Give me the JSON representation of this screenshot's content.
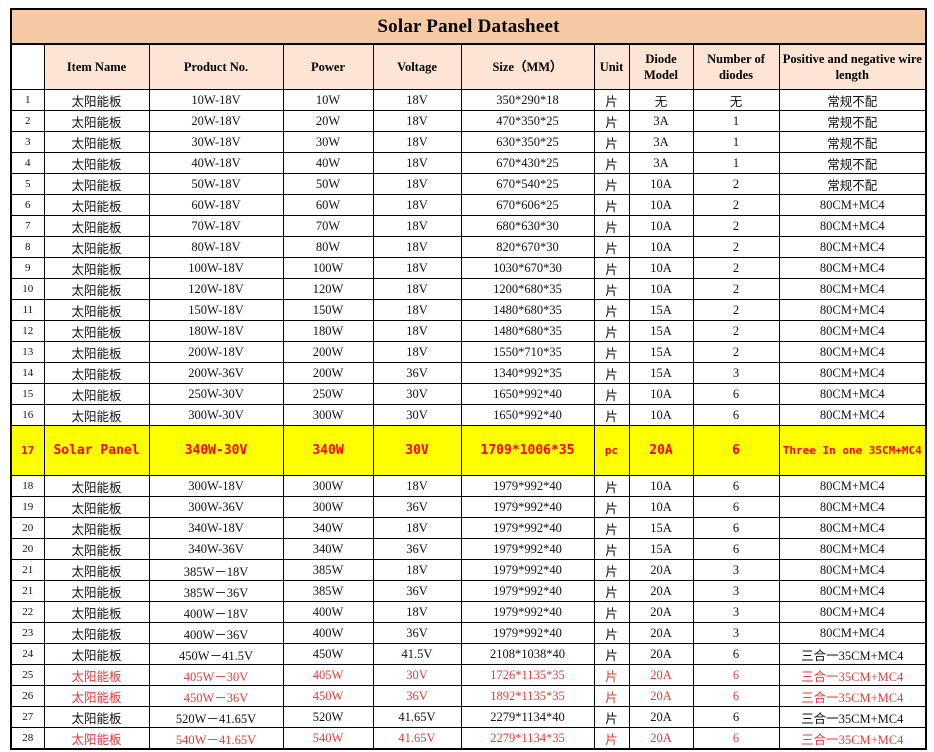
{
  "title": "Solar Panel Datasheet",
  "colors": {
    "title_bg": "#f5c9a4",
    "header_bg": "#fce5d5",
    "highlight_bg": "#ffff00",
    "highlight_text": "#ff0000",
    "red_text": "#e03c3c",
    "border": "#000000"
  },
  "columns": [
    "",
    "Item Name",
    "Product No.",
    "Power",
    "Voltage",
    "Size（MM）",
    "Unit",
    "Diode Model",
    "Number of diodes",
    "Positive and negative wire length"
  ],
  "rows": [
    {
      "no": "1",
      "item": "太阳能板",
      "product": "10W-18V",
      "power": "10W",
      "voltage": "18V",
      "size": "350*290*18",
      "unit": "片",
      "diode": "无",
      "count": "无",
      "wire": "常规不配",
      "style": "normal"
    },
    {
      "no": "2",
      "item": "太阳能板",
      "product": "20W-18V",
      "power": "20W",
      "voltage": "18V",
      "size": "470*350*25",
      "unit": "片",
      "diode": "3A",
      "count": "1",
      "wire": "常规不配",
      "style": "normal"
    },
    {
      "no": "3",
      "item": "太阳能板",
      "product": "30W-18V",
      "power": "30W",
      "voltage": "18V",
      "size": "630*350*25",
      "unit": "片",
      "diode": "3A",
      "count": "1",
      "wire": "常规不配",
      "style": "normal"
    },
    {
      "no": "4",
      "item": "太阳能板",
      "product": "40W-18V",
      "power": "40W",
      "voltage": "18V",
      "size": "670*430*25",
      "unit": "片",
      "diode": "3A",
      "count": "1",
      "wire": "常规不配",
      "style": "normal"
    },
    {
      "no": "5",
      "item": "太阳能板",
      "product": "50W-18V",
      "power": "50W",
      "voltage": "18V",
      "size": "670*540*25",
      "unit": "片",
      "diode": "10A",
      "count": "2",
      "wire": "常规不配",
      "style": "normal"
    },
    {
      "no": "6",
      "item": "太阳能板",
      "product": "60W-18V",
      "power": "60W",
      "voltage": "18V",
      "size": "670*606*25",
      "unit": "片",
      "diode": "10A",
      "count": "2",
      "wire": "80CM+MC4",
      "style": "normal"
    },
    {
      "no": "7",
      "item": "太阳能板",
      "product": "70W-18V",
      "power": "70W",
      "voltage": "18V",
      "size": "680*630*30",
      "unit": "片",
      "diode": "10A",
      "count": "2",
      "wire": "80CM+MC4",
      "style": "normal"
    },
    {
      "no": "8",
      "item": "太阳能板",
      "product": "80W-18V",
      "power": "80W",
      "voltage": "18V",
      "size": "820*670*30",
      "unit": "片",
      "diode": "10A",
      "count": "2",
      "wire": "80CM+MC4",
      "style": "normal"
    },
    {
      "no": "9",
      "item": "太阳能板",
      "product": "100W-18V",
      "power": "100W",
      "voltage": "18V",
      "size": "1030*670*30",
      "unit": "片",
      "diode": "10A",
      "count": "2",
      "wire": "80CM+MC4",
      "style": "normal"
    },
    {
      "no": "10",
      "item": "太阳能板",
      "product": "120W-18V",
      "power": "120W",
      "voltage": "18V",
      "size": "1200*680*35",
      "unit": "片",
      "diode": "10A",
      "count": "2",
      "wire": "80CM+MC4",
      "style": "normal"
    },
    {
      "no": "11",
      "item": "太阳能板",
      "product": "150W-18V",
      "power": "150W",
      "voltage": "18V",
      "size": "1480*680*35",
      "unit": "片",
      "diode": "15A",
      "count": "2",
      "wire": "80CM+MC4",
      "style": "normal"
    },
    {
      "no": "12",
      "item": "太阳能板",
      "product": "180W-18V",
      "power": "180W",
      "voltage": "18V",
      "size": "1480*680*35",
      "unit": "片",
      "diode": "15A",
      "count": "2",
      "wire": "80CM+MC4",
      "style": "normal"
    },
    {
      "no": "13",
      "item": "太阳能板",
      "product": "200W-18V",
      "power": "200W",
      "voltage": "18V",
      "size": "1550*710*35",
      "unit": "片",
      "diode": "15A",
      "count": "2",
      "wire": "80CM+MC4",
      "style": "normal"
    },
    {
      "no": "14",
      "item": "太阳能板",
      "product": "200W-36V",
      "power": "200W",
      "voltage": "36V",
      "size": "1340*992*35",
      "unit": "片",
      "diode": "15A",
      "count": "3",
      "wire": "80CM+MC4",
      "style": "normal"
    },
    {
      "no": "15",
      "item": "太阳能板",
      "product": "250W-30V",
      "power": "250W",
      "voltage": "30V",
      "size": "1650*992*40",
      "unit": "片",
      "diode": "10A",
      "count": "6",
      "wire": "80CM+MC4",
      "style": "normal"
    },
    {
      "no": "16",
      "item": "太阳能板",
      "product": "300W-30V",
      "power": "300W",
      "voltage": "30V",
      "size": "1650*992*40",
      "unit": "片",
      "diode": "10A",
      "count": "6",
      "wire": "80CM+MC4",
      "style": "normal"
    },
    {
      "no": "17",
      "item": "Solar Panel",
      "product": "340W-30V",
      "power": "340W",
      "voltage": "30V",
      "size": "1709*1006*35",
      "unit": "pc",
      "diode": "20A",
      "count": "6",
      "wire": "Three In one 35CM+MC4",
      "style": "highlight"
    },
    {
      "no": "18",
      "item": "太阳能板",
      "product": "300W-18V",
      "power": "300W",
      "voltage": "18V",
      "size": "1979*992*40",
      "unit": "片",
      "diode": "10A",
      "count": "6",
      "wire": "80CM+MC4",
      "style": "normal"
    },
    {
      "no": "19",
      "item": "太阳能板",
      "product": "300W-36V",
      "power": "300W",
      "voltage": "36V",
      "size": "1979*992*40",
      "unit": "片",
      "diode": "10A",
      "count": "6",
      "wire": "80CM+MC4",
      "style": "normal"
    },
    {
      "no": "20",
      "item": "太阳能板",
      "product": "340W-18V",
      "power": "340W",
      "voltage": "18V",
      "size": "1979*992*40",
      "unit": "片",
      "diode": "15A",
      "count": "6",
      "wire": "80CM+MC4",
      "style": "normal"
    },
    {
      "no": "20",
      "item": "太阳能板",
      "product": "340W-36V",
      "power": "340W",
      "voltage": "36V",
      "size": "1979*992*40",
      "unit": "片",
      "diode": "15A",
      "count": "6",
      "wire": "80CM+MC4",
      "style": "normal"
    },
    {
      "no": "21",
      "item": "太阳能板",
      "product": "385W－18V",
      "power": "385W",
      "voltage": "18V",
      "size": "1979*992*40",
      "unit": "片",
      "diode": "20A",
      "count": "3",
      "wire": "80CM+MC4",
      "style": "normal"
    },
    {
      "no": "21",
      "item": "太阳能板",
      "product": "385W－36V",
      "power": "385W",
      "voltage": "36V",
      "size": "1979*992*40",
      "unit": "片",
      "diode": "20A",
      "count": "3",
      "wire": "80CM+MC4",
      "style": "normal"
    },
    {
      "no": "22",
      "item": "太阳能板",
      "product": "400W－18V",
      "power": "400W",
      "voltage": "18V",
      "size": "1979*992*40",
      "unit": "片",
      "diode": "20A",
      "count": "3",
      "wire": "80CM+MC4",
      "style": "normal"
    },
    {
      "no": "23",
      "item": "太阳能板",
      "product": "400W－36V",
      "power": "400W",
      "voltage": "36V",
      "size": "1979*992*40",
      "unit": "片",
      "diode": "20A",
      "count": "3",
      "wire": "80CM+MC4",
      "style": "normal"
    },
    {
      "no": "24",
      "item": "太阳能板",
      "product": "450W－41.5V",
      "power": "450W",
      "voltage": "41.5V",
      "size": "2108*1038*40",
      "unit": "片",
      "diode": "20A",
      "count": "6",
      "wire": "三合一35CM+MC4",
      "style": "normal"
    },
    {
      "no": "25",
      "item": "太阳能板",
      "product": "405W－30V",
      "power": "405W",
      "voltage": "30V",
      "size": "1726*1135*35",
      "unit": "片",
      "diode": "20A",
      "count": "6",
      "wire": "三合一35CM+MC4",
      "style": "red"
    },
    {
      "no": "26",
      "item": "太阳能板",
      "product": "450W－36V",
      "power": "450W",
      "voltage": "36V",
      "size": "1892*1135*35",
      "unit": "片",
      "diode": "20A",
      "count": "6",
      "wire": "三合一35CM+MC4",
      "style": "red"
    },
    {
      "no": "27",
      "item": "太阳能板",
      "product": "520W－41.65V",
      "power": "520W",
      "voltage": "41.65V",
      "size": "2279*1134*40",
      "unit": "片",
      "diode": "20A",
      "count": "6",
      "wire": "三合一35CM+MC4",
      "style": "normal"
    },
    {
      "no": "28",
      "item": "太阳能板",
      "product": "540W－41.65V",
      "power": "540W",
      "voltage": "41.65V",
      "size": "2279*1134*35",
      "unit": "片",
      "diode": "20A",
      "count": "6",
      "wire": "三合一35CM+MC4",
      "style": "red"
    }
  ]
}
